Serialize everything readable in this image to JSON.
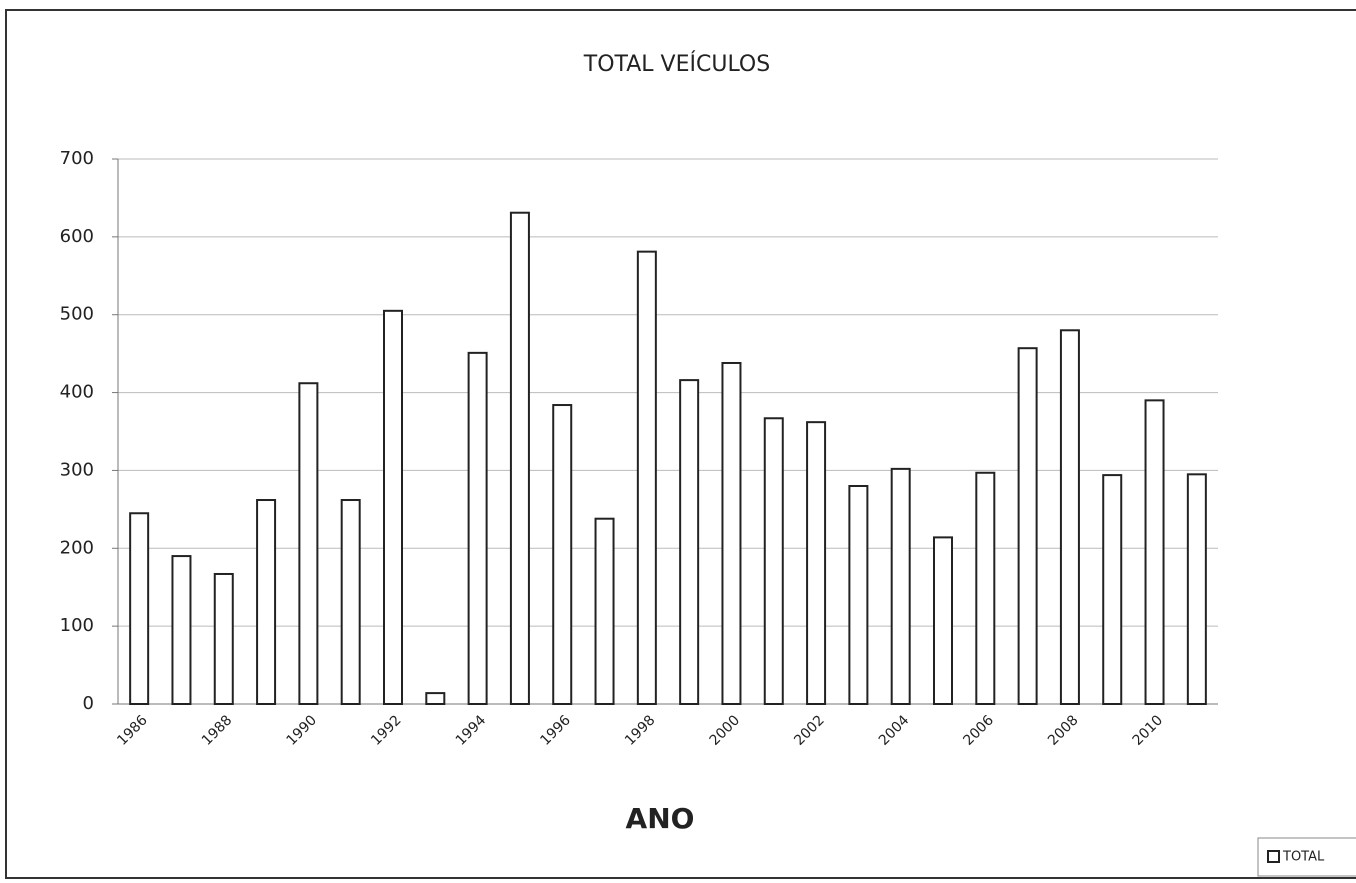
{
  "chart_data": {
    "type": "bar",
    "title": "TOTAL VEÍCULOS",
    "x_label": "ANO",
    "categories": [
      "1986",
      null,
      "1988",
      null,
      "1990",
      null,
      "1992",
      null,
      "1994",
      null,
      "1996",
      null,
      "1998",
      null,
      "2000",
      null,
      "2002",
      null,
      "2004",
      null,
      "2006",
      null,
      "2008",
      null,
      "2010",
      null
    ],
    "series": [
      {
        "name": "TOTAL",
        "color": "#ffffff",
        "values": [
          245,
          190,
          167,
          262,
          412,
          262,
          505,
          14,
          451,
          631,
          384,
          238,
          581,
          416,
          438,
          367,
          362,
          280,
          302,
          214,
          297,
          457,
          480,
          294,
          390,
          295
        ]
      }
    ],
    "ylim": [
      0,
      700
    ],
    "yticks": [
      0,
      100,
      200,
      300,
      400,
      500,
      600,
      700
    ],
    "grid": true,
    "legend": "lower right"
  }
}
